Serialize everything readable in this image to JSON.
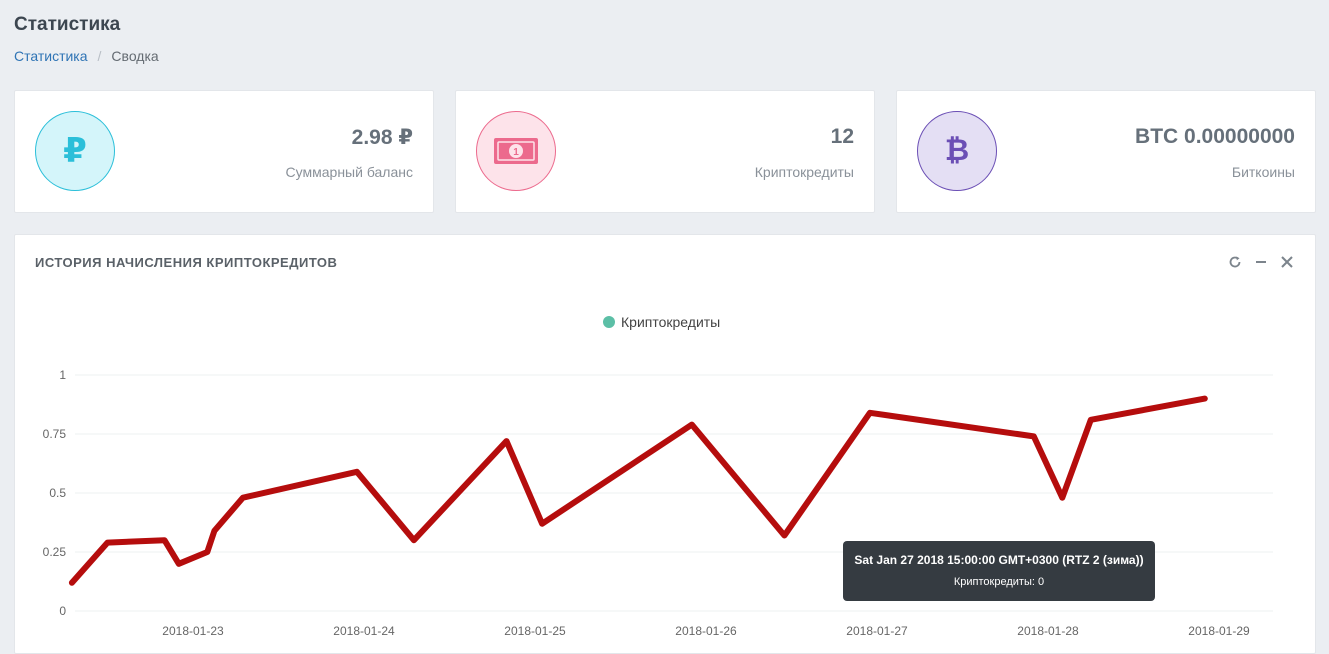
{
  "header": {
    "title": "Статистика",
    "breadcrumb": [
      {
        "label": "Статистика"
      },
      {
        "label": "Сводка"
      }
    ]
  },
  "cards": [
    {
      "value": "2.98 ₽",
      "label": "Суммарный баланс",
      "icon": "ruble-icon",
      "icon_glyph": "₽",
      "color": "#2bbfd9",
      "bg": "#d4f5fa"
    },
    {
      "value": "12",
      "label": "Криптокредиты",
      "icon": "money-icon",
      "color": "#ec6a8d",
      "bg": "#fde3ea"
    },
    {
      "value": "BTC 0.00000000",
      "label": "Биткоины",
      "icon": "bitcoin-icon",
      "icon_glyph": "₿",
      "color": "#6b4fb5",
      "bg": "#e4dff4"
    }
  ],
  "panel": {
    "title": "ИСТОРИЯ НАЧИСЛЕНИЯ КРИПТОКРЕДИТОВ"
  },
  "chart_data": {
    "type": "line",
    "legend_position": "top-center",
    "grid": true,
    "ylim": [
      0,
      1
    ],
    "yticks": [
      "0",
      "0.25",
      "0.5",
      "0.75",
      "1"
    ],
    "xticks": [
      "2018-01-23",
      "2018-01-24",
      "2018-01-25",
      "2018-01-26",
      "2018-01-27",
      "2018-01-28",
      "2018-01-29"
    ],
    "series": [
      {
        "name": "Криптокредиты",
        "legend_color": "#5cbfa6",
        "line_color": "#b50d0d",
        "points": [
          {
            "x": "2018-01-22T07:00",
            "y": 0.12
          },
          {
            "x": "2018-01-22T12:00",
            "y": 0.29
          },
          {
            "x": "2018-01-22T20:00",
            "y": 0.3
          },
          {
            "x": "2018-01-22T22:00",
            "y": 0.2
          },
          {
            "x": "2018-01-23T02:00",
            "y": 0.25
          },
          {
            "x": "2018-01-23T03:00",
            "y": 0.34
          },
          {
            "x": "2018-01-23T07:00",
            "y": 0.48
          },
          {
            "x": "2018-01-23T23:00",
            "y": 0.59
          },
          {
            "x": "2018-01-24T07:00",
            "y": 0.3
          },
          {
            "x": "2018-01-24T20:00",
            "y": 0.72
          },
          {
            "x": "2018-01-25T01:00",
            "y": 0.37
          },
          {
            "x": "2018-01-25T22:00",
            "y": 0.79
          },
          {
            "x": "2018-01-26T11:00",
            "y": 0.32
          },
          {
            "x": "2018-01-26T23:00",
            "y": 0.84
          },
          {
            "x": "2018-01-27T22:00",
            "y": 0.74
          },
          {
            "x": "2018-01-28T02:00",
            "y": 0.48
          },
          {
            "x": "2018-01-28T06:00",
            "y": 0.81
          },
          {
            "x": "2018-01-28T22:00",
            "y": 0.9
          }
        ]
      }
    ]
  },
  "tooltip": {
    "title": "Sat Jan 27 2018 15:00:00 GMT+0300 (RTZ 2 (зима))",
    "body": "Криптокредиты: 0"
  }
}
